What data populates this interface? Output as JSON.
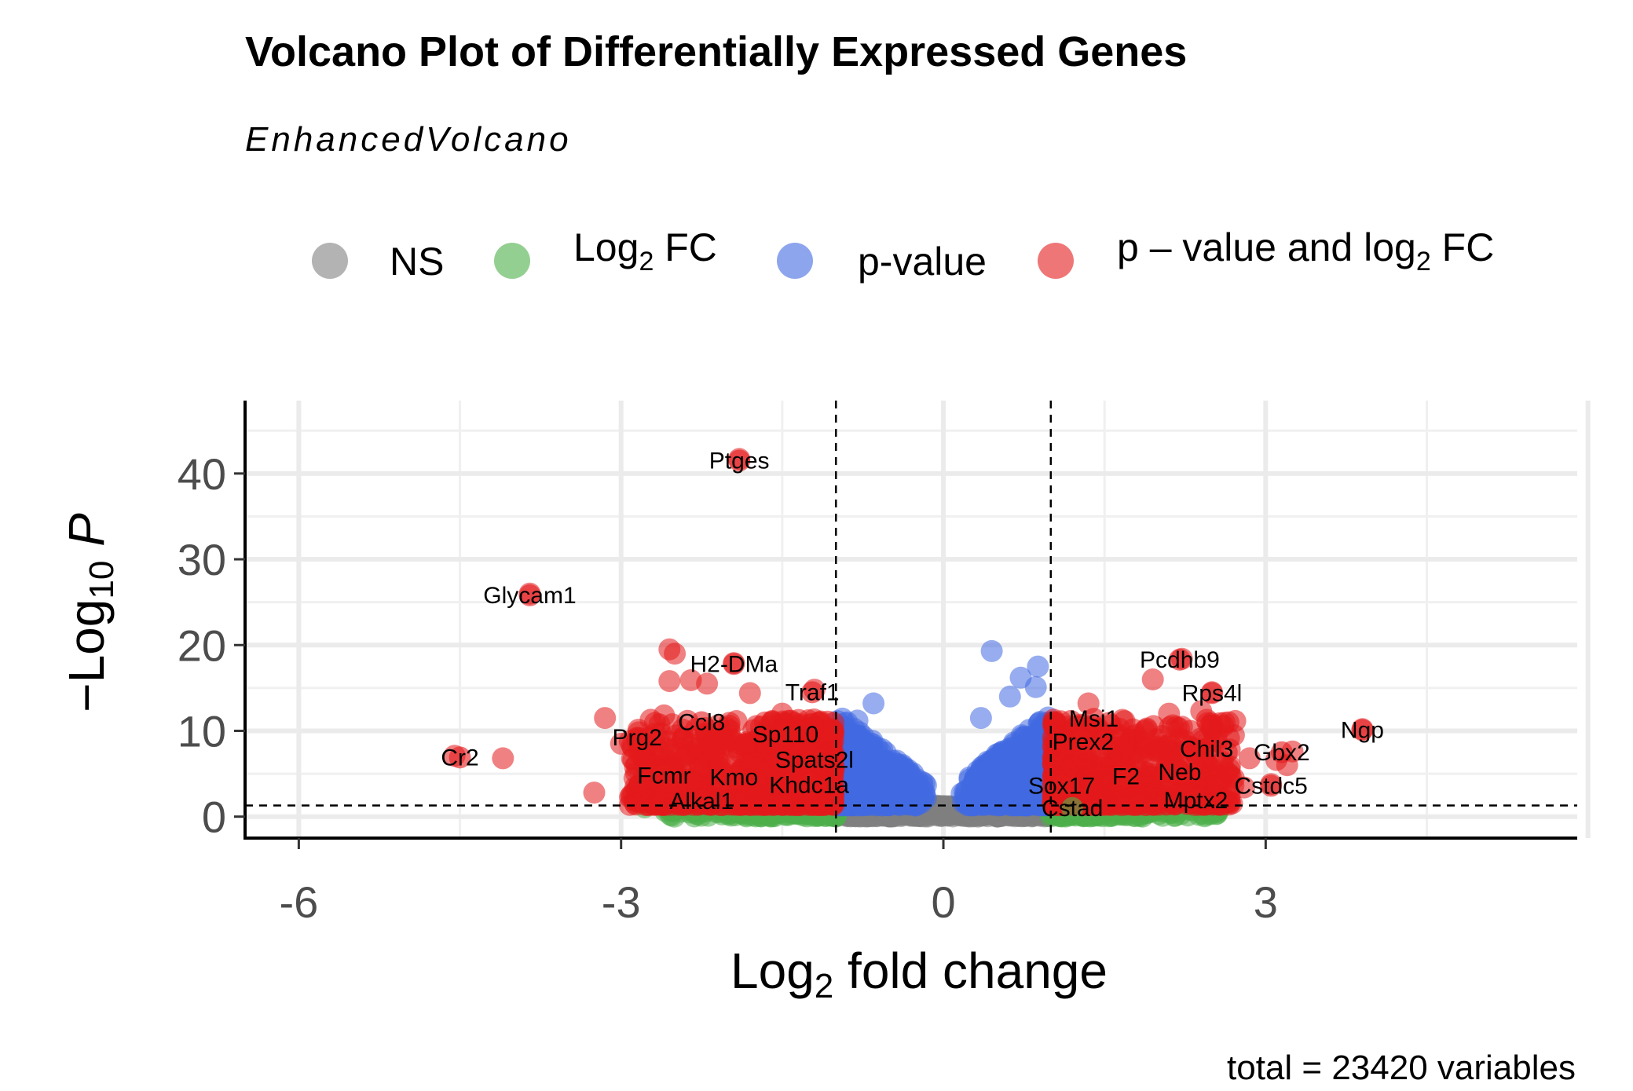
{
  "chart_data": {
    "type": "scatter",
    "title": "Volcano Plot of Differentially Expressed Genes",
    "subtitle": "EnhancedVolcano",
    "xlabel": "Log2 fold change",
    "ylabel": "-Log10 P",
    "caption": "total = 23420 variables",
    "xlim": [
      -6.5,
      5.9
    ],
    "ylim": [
      -2.5,
      48.5
    ],
    "x_ticks": [
      "-6",
      "-3",
      "0",
      "3"
    ],
    "x_tick_values": [
      -6,
      -3,
      0,
      3
    ],
    "y_ticks": [
      "0",
      "10",
      "20",
      "30",
      "40"
    ],
    "y_tick_values": [
      0,
      10,
      20,
      30,
      40
    ],
    "thresholds": {
      "log2fc": [
        -1,
        1
      ],
      "neg_log10_p": 1.3
    },
    "grid": true,
    "legend_position": "top",
    "legend": [
      {
        "key": "ns",
        "label": "NS",
        "color": "#808080"
      },
      {
        "key": "fc",
        "label": "Log2 FC",
        "label_base": "Log",
        "label_sub": "2",
        "label_rest": " FC",
        "color": "#4DAF4A"
      },
      {
        "key": "p",
        "label": "p-value",
        "color": "#4169E1"
      },
      {
        "key": "both",
        "label": "p – value and log2 FC",
        "label_base": "p – value and log",
        "label_sub": "2",
        "label_rest": " FC",
        "color": "#E41A1C"
      }
    ],
    "labeled_genes": [
      {
        "name": "Ptges",
        "x": -1.9,
        "y": 41.5
      },
      {
        "name": "Glycam1",
        "x": -3.85,
        "y": 25.8
      },
      {
        "name": "H2-DMa",
        "x": -1.95,
        "y": 17.8
      },
      {
        "name": "Traf1",
        "x": -1.22,
        "y": 14.5
      },
      {
        "name": "Ccl8",
        "x": -2.25,
        "y": 11.0
      },
      {
        "name": "Sp110",
        "x": -1.47,
        "y": 9.6
      },
      {
        "name": "Prg2",
        "x": -2.85,
        "y": 9.2
      },
      {
        "name": "Cr2",
        "x": -4.5,
        "y": 6.9
      },
      {
        "name": "Spats2l",
        "x": -1.2,
        "y": 6.6
      },
      {
        "name": "Fcmr",
        "x": -2.6,
        "y": 4.8
      },
      {
        "name": "Kmo",
        "x": -1.95,
        "y": 4.6
      },
      {
        "name": "Khdc1a",
        "x": -1.25,
        "y": 3.7
      },
      {
        "name": "Alkal1",
        "x": -2.25,
        "y": 1.8
      },
      {
        "name": "Pcdhb9",
        "x": 2.2,
        "y": 18.3
      },
      {
        "name": "Rps4l",
        "x": 2.5,
        "y": 14.4
      },
      {
        "name": "Msi1",
        "x": 1.4,
        "y": 11.4
      },
      {
        "name": "Prex2",
        "x": 1.3,
        "y": 8.7
      },
      {
        "name": "Ngp",
        "x": 3.9,
        "y": 10.1
      },
      {
        "name": "Chil3",
        "x": 2.45,
        "y": 7.9
      },
      {
        "name": "Gbx2",
        "x": 3.15,
        "y": 7.5
      },
      {
        "name": "F2",
        "x": 1.7,
        "y": 4.7
      },
      {
        "name": "Neb",
        "x": 2.2,
        "y": 5.2
      },
      {
        "name": "Sox17",
        "x": 1.1,
        "y": 3.6
      },
      {
        "name": "Cstdc5",
        "x": 3.05,
        "y": 3.6
      },
      {
        "name": "Mptx2",
        "x": 2.35,
        "y": 1.9
      },
      {
        "name": "Cstad",
        "x": 1.2,
        "y": 1.0
      }
    ]
  }
}
